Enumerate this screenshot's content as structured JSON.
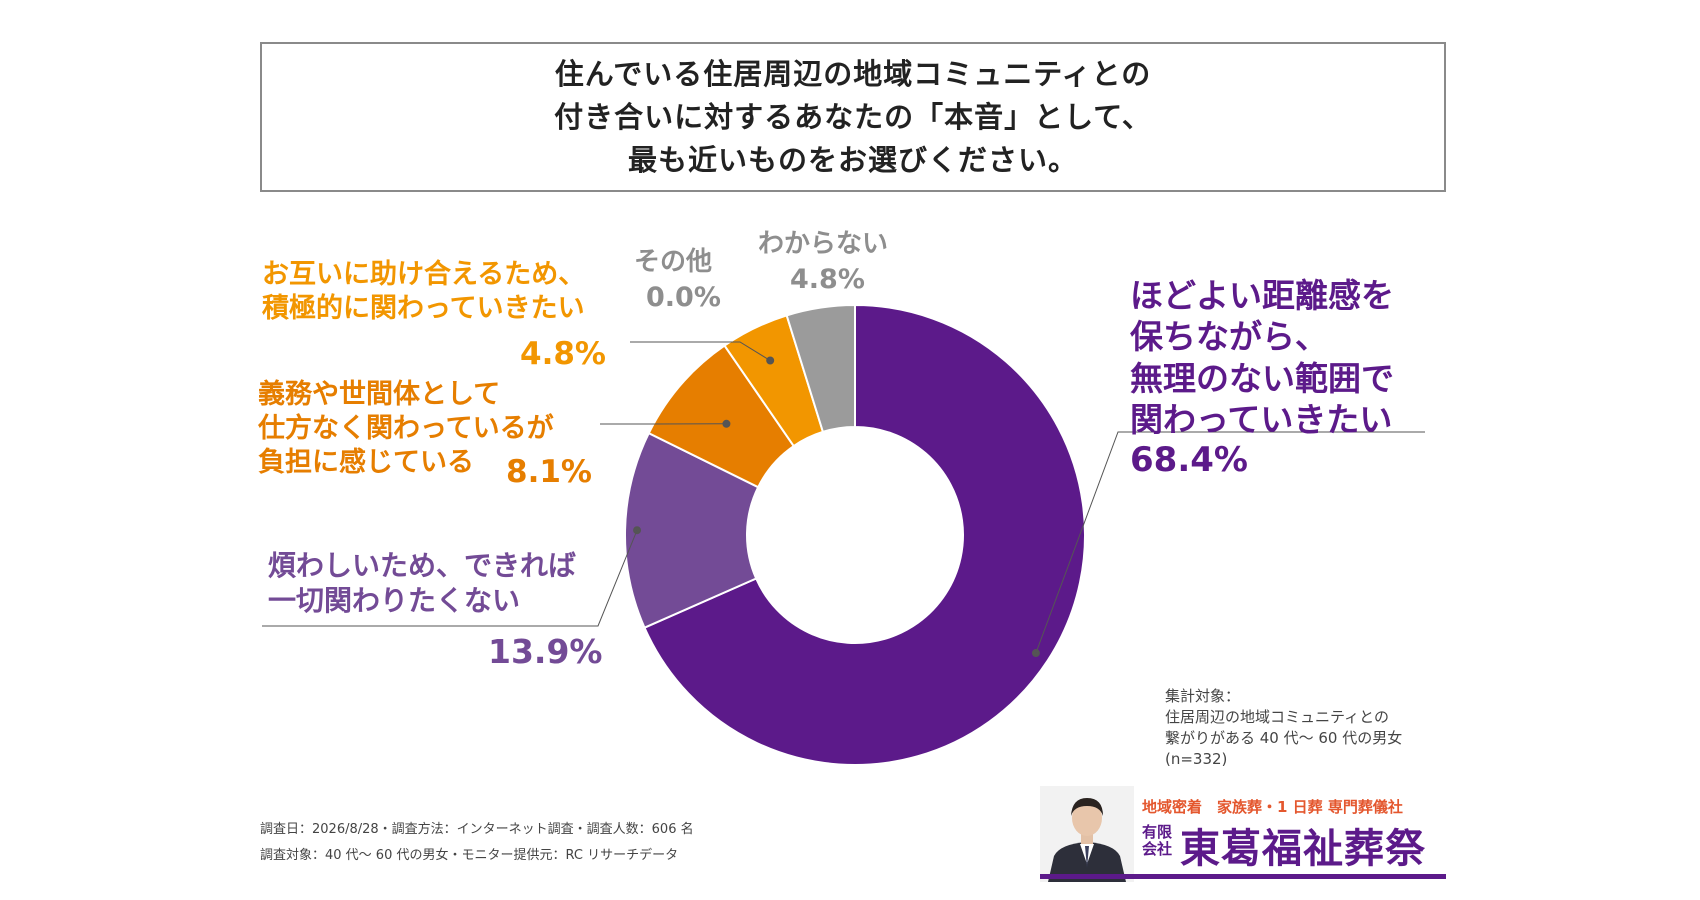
{
  "title": {
    "line1": "住んでいる住居周辺の地域コミュニティとの",
    "line2": "付き合いに対するあなたの「本音」として、",
    "line3": "最も近いものをお選びください。"
  },
  "chart_data": {
    "type": "pie",
    "variant": "donut",
    "slices": [
      {
        "label_lines": [
          "ほどよい距離感を",
          "保ちながら、",
          "無理のない範囲で",
          "関わっていきたい"
        ],
        "value": 68.4,
        "display": "68.4%",
        "color": "#5c1a8a"
      },
      {
        "label_lines": [
          "煩わしいため、できれば",
          "一切関わりたくない"
        ],
        "value": 13.9,
        "display": "13.9%",
        "color": "#734b96"
      },
      {
        "label_lines": [
          "義務や世間体として",
          "仕方なく関わっているが",
          "負担に感じている"
        ],
        "value": 8.1,
        "display": "8.1%",
        "color": "#e67e00"
      },
      {
        "label_lines": [
          "お互いに助け合えるため、",
          "積極的に関わっていきたい"
        ],
        "value": 4.8,
        "display": "4.8%",
        "color": "#f29600"
      },
      {
        "label_lines": [
          "その他"
        ],
        "value": 0.0,
        "display": "0.0%",
        "color": "#c8c8c8"
      },
      {
        "label_lines": [
          "わからない"
        ],
        "value": 4.8,
        "display": "4.8%",
        "color": "#9b9b9b"
      }
    ]
  },
  "note": {
    "line1": "集計対象：",
    "line2": "住居周辺の地域コミュニティとの",
    "line3": "繋がりがある 40 代～ 60 代の男女",
    "line4": "(n=332)"
  },
  "footer": {
    "line1": "調査日：2026/8/28・調査方法：インターネット調査・調査人数：606 名",
    "line2": "調査対象：40 代～ 60 代の男女・モニター提供元：RC リサーチデータ"
  },
  "brand": {
    "tagline": "地域密着　家族葬・1 日葬 専門葬儀社",
    "prefix": "有限会社",
    "name": "東葛福祉葬祭"
  }
}
